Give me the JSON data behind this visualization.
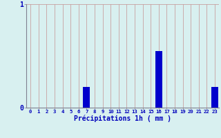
{
  "hours": [
    0,
    1,
    2,
    3,
    4,
    5,
    6,
    7,
    8,
    9,
    10,
    11,
    12,
    13,
    14,
    15,
    16,
    17,
    18,
    19,
    20,
    21,
    22,
    23
  ],
  "values": [
    0,
    0,
    0,
    0,
    0,
    0,
    0,
    0.2,
    0,
    0,
    0,
    0,
    0,
    0,
    0,
    0,
    0.55,
    0,
    0,
    0,
    0,
    0,
    0,
    0.2
  ],
  "bar_color": "#0000cc",
  "background_color": "#d8f0f0",
  "grid_color": "#c8a0a0",
  "xlabel": "Précipitations 1h ( mm )",
  "xlabel_color": "#0000bb",
  "tick_color": "#0000bb",
  "ylim": [
    0,
    1.0
  ],
  "yticks": [
    0,
    1
  ],
  "xlim": [
    -0.5,
    23.5
  ],
  "bar_width": 0.85
}
